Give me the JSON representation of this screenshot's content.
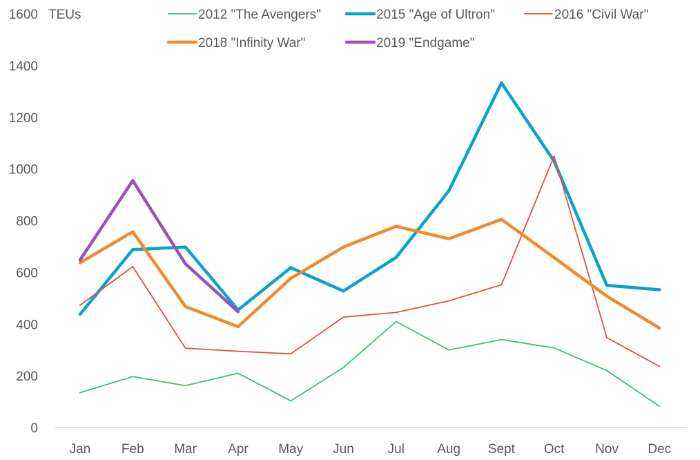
{
  "chart_data": {
    "type": "line",
    "title": "",
    "xlabel": "",
    "ylabel": "TEUs",
    "ylim": [
      0,
      1600
    ],
    "yticks": [
      0,
      200,
      400,
      600,
      800,
      1000,
      1200,
      1400,
      1600
    ],
    "grid": false,
    "legend_position": "top",
    "categories": [
      "Jan",
      "Feb",
      "Mar",
      "Apr",
      "May",
      "Jun",
      "Jul",
      "Aug",
      "Sept",
      "Oct",
      "Nov",
      "Dec"
    ],
    "series": [
      {
        "name": "2012 \"The Avengers\"",
        "color": "#3cc16a",
        "weight": "thin",
        "values": [
          135,
          197,
          162,
          210,
          103,
          232,
          410,
          300,
          340,
          308,
          220,
          82
        ]
      },
      {
        "name": "2015 \"Age of Ultron\"",
        "color": "#0aa2cd",
        "weight": "thick",
        "values": [
          438,
          688,
          698,
          455,
          618,
          528,
          658,
          915,
          1333,
          1030,
          550,
          533
        ]
      },
      {
        "name": "2016 \"Civil War\"",
        "color": "#e2503a",
        "weight": "thin",
        "values": [
          473,
          622,
          307,
          295,
          285,
          427,
          445,
          490,
          552,
          1050,
          348,
          236
        ]
      },
      {
        "name": "2018 \"Infinity War\"",
        "color": "#ee8b2b",
        "weight": "thick",
        "values": [
          637,
          757,
          468,
          390,
          577,
          698,
          778,
          730,
          805,
          657,
          508,
          385
        ]
      },
      {
        "name": "2019 \"Endgame\"",
        "color": "#9752b5",
        "weight": "thick",
        "values": [
          648,
          955,
          633,
          448,
          null,
          null,
          null,
          null,
          null,
          null,
          null,
          null
        ]
      }
    ]
  }
}
